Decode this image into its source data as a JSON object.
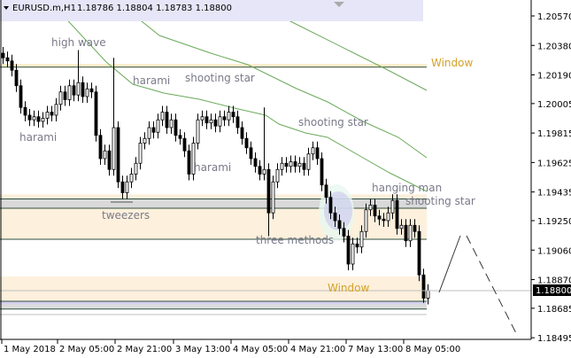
{
  "header": {
    "symbol": "EURUSD.m,H1",
    "ohlc": "1.18786 1.18804 1.18783 1.18800"
  },
  "chart_data": {
    "type": "candlestick",
    "title": "",
    "y_ticks": [
      "1.20570",
      "1.20380",
      "1.20190",
      "1.20005",
      "1.19815",
      "1.19625",
      "1.19435",
      "1.19250",
      "1.19060",
      "1.18870",
      "1.18685",
      "1.18495"
    ],
    "ylim": [
      1.1847,
      1.2067
    ],
    "x_ticks": [
      "1 May 2018",
      "2 May 05:00",
      "2 May 21:00",
      "3 May 13:00",
      "4 May 05:00",
      "4 May 21:00",
      "7 May 13:00",
      "8 May 05:00"
    ],
    "current_price": "1.18800",
    "close": [
      1.203,
      1.2028,
      1.2022,
      1.2012,
      1.1998,
      1.1993,
      1.199,
      1.1992,
      1.1989,
      1.1991,
      1.1995,
      1.1993,
      1.2,
      1.2008,
      1.2003,
      1.2012,
      1.2006,
      1.2014,
      1.2005,
      1.201,
      1.2008,
      1.198,
      1.1965,
      1.197,
      1.1958,
      1.1985,
      1.195,
      1.1943,
      1.195,
      1.1955,
      1.1962,
      1.1975,
      1.1978,
      1.1985,
      1.1982,
      1.199,
      1.1995,
      1.1985,
      1.199,
      1.198,
      1.1978,
      1.197,
      1.1955,
      1.1975,
      1.199,
      1.1992,
      1.1988,
      1.199,
      1.1986,
      1.1992,
      1.199,
      1.1995,
      1.1992,
      1.1985,
      1.1978,
      1.1972,
      1.1965,
      1.196,
      1.1955,
      1.1958,
      1.193,
      1.195,
      1.1958,
      1.1962,
      1.196,
      1.1963,
      1.196,
      1.1962,
      1.1958,
      1.1968,
      1.1972,
      1.1965,
      1.1948,
      1.194,
      1.193,
      1.1925,
      1.192,
      1.1915,
      1.1897,
      1.191,
      1.1908,
      1.1918,
      1.1932,
      1.1935,
      1.1928,
      1.1926,
      1.1925,
      1.193,
      1.1938,
      1.192,
      1.1922,
      1.1912,
      1.1922,
      1.1918,
      1.189,
      1.1875,
      1.188
    ],
    "wick_extremes": {
      "17": {
        "high": 1.2035
      },
      "25": {
        "high": 1.203
      },
      "59": {
        "high": 1.1998
      },
      "60": {
        "low": 1.1915
      },
      "78": {
        "low": 1.1893
      },
      "95": {
        "low": 1.1872
      }
    },
    "zones": [
      {
        "type": "window",
        "from": 1.2026,
        "to": 1.2024,
        "color": "#fdebc8"
      },
      {
        "type": "zone",
        "from": 1.1942,
        "to": 1.1913,
        "color": "#fdf0dc"
      },
      {
        "type": "zone",
        "from": 1.1939,
        "to": 1.1933,
        "color": "#d9d9d9"
      },
      {
        "type": "window",
        "from": 1.1889,
        "to": 1.1873,
        "color": "#fdf0dc"
      },
      {
        "type": "zone",
        "from": 1.1873,
        "to": 1.1871,
        "color": "#d6d0f0"
      },
      {
        "type": "zone",
        "from": 1.1871,
        "to": 1.1868,
        "color": "#dcdcdc"
      },
      {
        "type": "zone",
        "from": 1.1865,
        "to": 1.1864,
        "color": "#dcdcdc"
      }
    ],
    "levels": [
      1.2024,
      1.1939,
      1.1933,
      1.1913,
      1.1873,
      1.1868
    ],
    "annotations": [
      {
        "text": "high wave"
      },
      {
        "text": "harami"
      },
      {
        "text": "shooting star"
      },
      {
        "text": "harami"
      },
      {
        "text": "shooting star"
      },
      {
        "text": "harami"
      },
      {
        "text": "tweezers"
      },
      {
        "text": "three methods"
      },
      {
        "text": "hanging man"
      },
      {
        "text": "shooting star"
      },
      {
        "text": "Window"
      },
      {
        "text": "Window"
      }
    ],
    "colors": {
      "bull": "#ffffff",
      "bear": "#000000",
      "ma": "#6aaa5a",
      "window_text": "#d4a22a",
      "pattern_text": "#7a7a8a",
      "header_bg": "#e6e6f8"
    }
  }
}
